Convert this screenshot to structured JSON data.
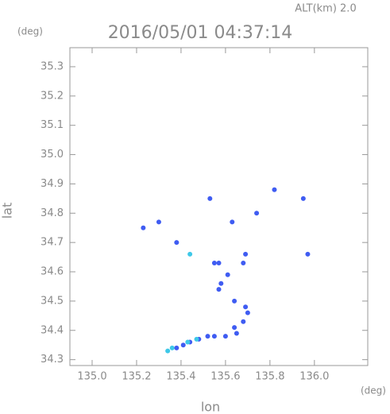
{
  "chart_data": {
    "type": "scatter",
    "title": "2016/05/01 04:37:14",
    "subtitle": "ALT(km) 2.0",
    "y_unit": "(deg)",
    "x_unit": "(deg)",
    "x_label": "lon",
    "y_label": "lat",
    "xlim": [
      134.9,
      136.24
    ],
    "ylim": [
      34.28,
      35.365
    ],
    "xticks": [
      {
        "value": 135.0,
        "label": "135.0"
      },
      135.2,
      135.4,
      135.6,
      135.8,
      {
        "value": 136.0,
        "label": "136.0"
      }
    ],
    "yticks": [
      34.3,
      34.4,
      34.5,
      34.6,
      34.7,
      34.8,
      34.9,
      {
        "value": 35.0,
        "label": "35.0"
      },
      35.1,
      35.2,
      35.3
    ],
    "series": [
      {
        "color": "#3f5cf2",
        "x": [
          135.23,
          135.3,
          135.38,
          135.53,
          135.63,
          135.74,
          135.82,
          135.95,
          135.97,
          135.69,
          135.68,
          135.61,
          135.57,
          135.55,
          135.58,
          135.57,
          135.64,
          135.69,
          135.7,
          135.68,
          135.64,
          135.65,
          135.6,
          135.55,
          135.52,
          135.48,
          135.44,
          135.41,
          135.38
        ],
        "values": [
          34.75,
          34.77,
          34.7,
          34.85,
          34.77,
          34.8,
          34.88,
          34.85,
          34.66,
          34.66,
          34.63,
          34.59,
          34.63,
          34.63,
          34.56,
          34.54,
          34.5,
          34.48,
          34.46,
          34.43,
          34.41,
          34.39,
          34.38,
          34.38,
          34.38,
          34.37,
          34.36,
          34.35,
          34.34
        ]
      },
      {
        "color": "#3ec8e8",
        "x": [
          135.44,
          135.34,
          135.36,
          135.43,
          135.47
        ],
        "values": [
          34.66,
          34.33,
          34.34,
          34.36,
          34.37
        ]
      }
    ]
  }
}
